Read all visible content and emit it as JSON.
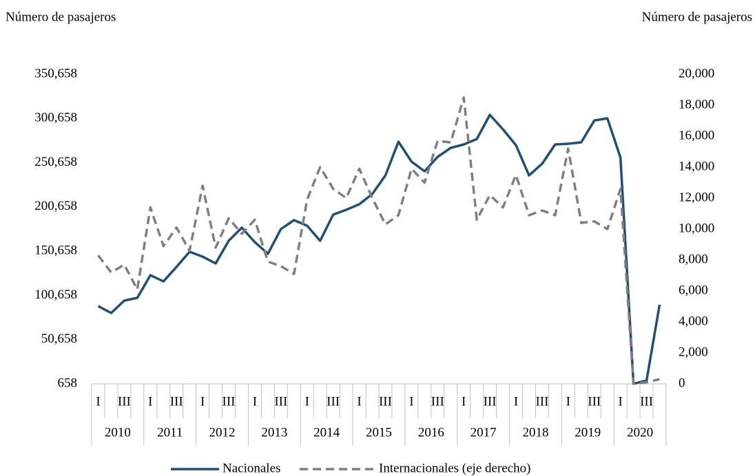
{
  "chart_data": {
    "type": "line",
    "y_axis_label": "Número de pasajeros",
    "y2_axis_label": "Número de pasajeros",
    "categories": [
      "I",
      null,
      "III",
      null,
      "I",
      null,
      "III",
      null,
      "I",
      null,
      "III",
      null,
      "I",
      null,
      "III",
      null,
      "I",
      null,
      "III",
      null,
      "I",
      null,
      "III",
      null,
      "I",
      null,
      "III",
      null,
      "I",
      null,
      "III",
      null,
      "I",
      null,
      "III",
      null,
      "I",
      null,
      "III",
      null,
      "I",
      null,
      "III",
      null
    ],
    "year_groups": [
      "2010",
      "2011",
      "2012",
      "2013",
      "2014",
      "2015",
      "2016",
      "2017",
      "2018",
      "2019",
      "2020"
    ],
    "series": [
      {
        "name": "Nacionales",
        "color": "#1f4e79",
        "dashed": false,
        "values": [
          88500,
          80800,
          94800,
          97900,
          123500,
          116500,
          132900,
          150000,
          144500,
          136800,
          162400,
          177200,
          160900,
          147700,
          175700,
          185800,
          179500,
          162400,
          192000,
          197400,
          203700,
          215300,
          236300,
          274400,
          251900,
          241000,
          257300,
          267400,
          271300,
          277500,
          304800,
          288400,
          270500,
          236300,
          249500,
          271300,
          272100,
          273700,
          298500,
          300900,
          256500,
          700,
          4500,
          90100
        ]
      },
      {
        "name": "Internacionales (eje derecho)",
        "color": "#7f7f7f",
        "dashed": true,
        "axis": "y2",
        "values": [
          8300,
          7200,
          7700,
          6100,
          11400,
          8900,
          10100,
          8600,
          12800,
          8800,
          10700,
          9700,
          10600,
          7900,
          7600,
          7100,
          11900,
          14000,
          12600,
          12000,
          13900,
          12000,
          10300,
          10900,
          13900,
          13000,
          15700,
          15600,
          18500,
          10600,
          12200,
          11400,
          13500,
          10900,
          11200,
          10900,
          15200,
          10400,
          10500,
          10000,
          12600,
          0,
          100,
          300
        ]
      }
    ],
    "ylim": [
      658,
      350658
    ],
    "yticks": [
      {
        "value": 658,
        "label": "658"
      },
      {
        "value": 50658,
        "label": "50,658"
      },
      {
        "value": 100658,
        "label": "100,658"
      },
      {
        "value": 150658,
        "label": "150,658"
      },
      {
        "value": 200658,
        "label": "200,658"
      },
      {
        "value": 250658,
        "label": "250,658"
      },
      {
        "value": 300658,
        "label": "300,658"
      },
      {
        "value": 350658,
        "label": "350,658"
      }
    ],
    "y2lim": [
      0,
      20000
    ],
    "y2ticks": [
      0,
      {
        "value": 2000,
        "label": "2,000"
      },
      {
        "value": 4000,
        "label": "4,000"
      },
      {
        "value": 6000,
        "label": "6,000"
      },
      {
        "value": 8000,
        "label": "8,000"
      },
      {
        "value": 10000,
        "label": "10,000"
      },
      {
        "value": 12000,
        "label": "12,000"
      },
      {
        "value": 14000,
        "label": "14,000"
      },
      {
        "value": 16000,
        "label": "16,000"
      },
      {
        "value": 18000,
        "label": "18,000"
      },
      {
        "value": 20000,
        "label": "20,000"
      }
    ],
    "grid": false,
    "legend": "bottom"
  }
}
